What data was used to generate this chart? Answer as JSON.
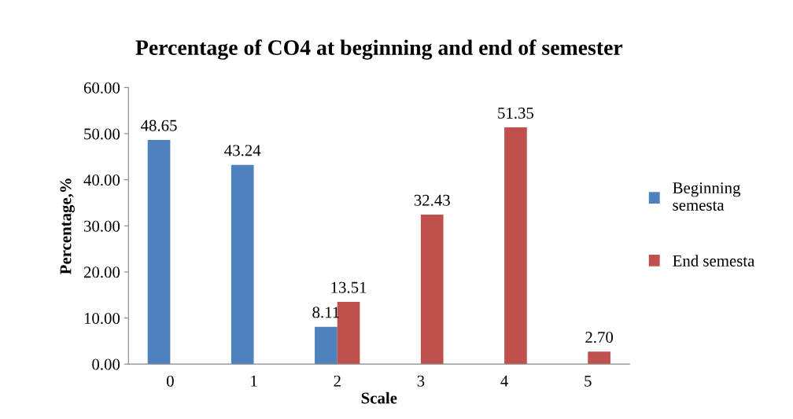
{
  "chart_data": {
    "type": "bar",
    "title": "Percentage of CO4 at beginning and end of semester",
    "xlabel": "Scale",
    "ylabel": "Percentage,%",
    "categories": [
      "0",
      "1",
      "2",
      "3",
      "4",
      "5"
    ],
    "series": [
      {
        "name": "Beginning semesta",
        "color": "#4f81bd",
        "values": [
          48.65,
          43.24,
          8.11,
          null,
          null,
          null
        ],
        "value_labels": [
          "48.65",
          "43.24",
          "8.11",
          null,
          null,
          null
        ]
      },
      {
        "name": "End semesta",
        "color": "#c0504d",
        "values": [
          null,
          null,
          13.51,
          32.43,
          51.35,
          2.7
        ],
        "value_labels": [
          null,
          null,
          "13.51",
          "32.43",
          "51.35",
          "2.70"
        ]
      }
    ],
    "ylim": [
      0,
      60
    ],
    "yticks": [
      {
        "value": 0,
        "label": "0.00"
      },
      {
        "value": 10,
        "label": "10.00"
      },
      {
        "value": 20,
        "label": "20.00"
      },
      {
        "value": 30,
        "label": "30.00"
      },
      {
        "value": 40,
        "label": "40.00"
      },
      {
        "value": 50,
        "label": "50.00"
      },
      {
        "value": 60,
        "label": "60.00"
      }
    ],
    "grid": false,
    "legend": "right"
  }
}
